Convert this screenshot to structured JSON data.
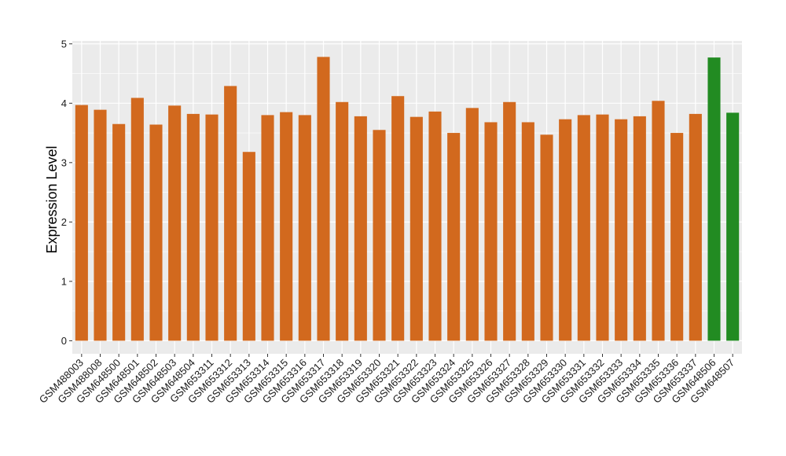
{
  "chart_data": {
    "type": "bar",
    "title": "",
    "xlabel": "",
    "ylabel": "Expression Level",
    "ylim": [
      -0.22,
      5.05
    ],
    "yticks": [
      0,
      1,
      2,
      3,
      4,
      5
    ],
    "grid": true,
    "legend": "none",
    "colors": {
      "default": "#D2691E",
      "highlight": "#228B22",
      "panel": "#EBEBEB",
      "grid": "#FFFFFF"
    },
    "categories": [
      "GSM488003",
      "GSM488008",
      "GSM648500",
      "GSM648501",
      "GSM648502",
      "GSM648503",
      "GSM648504",
      "GSM653311",
      "GSM653312",
      "GSM653313",
      "GSM653314",
      "GSM653315",
      "GSM653316",
      "GSM653317",
      "GSM653318",
      "GSM653319",
      "GSM653320",
      "GSM653321",
      "GSM653322",
      "GSM653323",
      "GSM653324",
      "GSM653325",
      "GSM653326",
      "GSM653327",
      "GSM653328",
      "GSM653329",
      "GSM653330",
      "GSM653331",
      "GSM653332",
      "GSM653333",
      "GSM653334",
      "GSM653335",
      "GSM653336",
      "GSM653337",
      "GSM648506",
      "GSM648507"
    ],
    "values": [
      3.97,
      3.89,
      3.65,
      4.09,
      3.64,
      3.96,
      3.82,
      3.81,
      4.29,
      3.18,
      3.8,
      3.85,
      3.8,
      4.78,
      4.02,
      3.78,
      3.55,
      4.12,
      3.77,
      3.86,
      3.5,
      3.92,
      3.68,
      4.02,
      3.68,
      3.47,
      3.73,
      3.8,
      3.81,
      3.73,
      3.78,
      4.04,
      3.5,
      3.82,
      4.77,
      3.84
    ],
    "bar_colors": [
      "default",
      "default",
      "default",
      "default",
      "default",
      "default",
      "default",
      "default",
      "default",
      "default",
      "default",
      "default",
      "default",
      "default",
      "default",
      "default",
      "default",
      "default",
      "default",
      "default",
      "default",
      "default",
      "default",
      "default",
      "default",
      "default",
      "default",
      "default",
      "default",
      "default",
      "default",
      "default",
      "default",
      "default",
      "highlight",
      "highlight"
    ]
  }
}
